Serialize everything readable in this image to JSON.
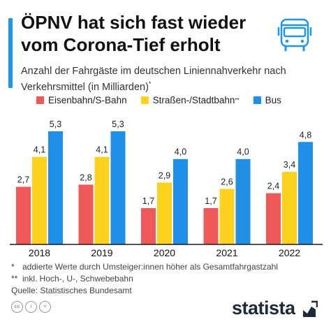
{
  "header": {
    "title": "ÖPNV hat sich fast wieder vom Corona-Tief erholt",
    "subtitle": "Anzahl der Fahrgäste im deutschen Liniennahverkehr nach Verkehrsmittel (in Milliarden)",
    "subtitle_mark": "*",
    "icon": "bus-icon"
  },
  "colors": {
    "accent": "#2196e8",
    "rail": "#f0595a",
    "tram": "#fcd21e",
    "bus": "#1f8fe8",
    "axis": "#1a1a1a"
  },
  "chart_data": {
    "type": "bar",
    "categories": [
      "2018",
      "2019",
      "2020",
      "2021",
      "2022"
    ],
    "series": [
      {
        "name": "Eisenbahn/S-Bahn",
        "values": [
          2.7,
          2.8,
          1.7,
          1.7,
          2.4
        ],
        "labels": [
          "2,7",
          "2,8",
          "1,7",
          "1,7",
          "2,4"
        ]
      },
      {
        "name": "Straßen-/Stadtbahn",
        "name_mark": "**",
        "values": [
          4.1,
          4.1,
          2.9,
          2.6,
          3.4
        ],
        "labels": [
          "4,1",
          "4,1",
          "2,9",
          "2,6",
          "3,4"
        ]
      },
      {
        "name": "Bus",
        "values": [
          5.3,
          5.3,
          4.0,
          4.0,
          4.8
        ],
        "labels": [
          "5,3",
          "5,3",
          "4,0",
          "4,0",
          "4,8"
        ]
      }
    ],
    "ylim": [
      0,
      5.3
    ],
    "grid": false,
    "legend_position": "top"
  },
  "footnotes": [
    {
      "symbol": "*",
      "text": "addierte Werte durch Umsteiger:innen höher als Gesamtfahrgastzahl"
    },
    {
      "symbol": "**",
      "text": "inkl. Hoch-, U-, Schwebebahn"
    }
  ],
  "source": "Quelle: Statistisches Bundesamt",
  "footer": {
    "brand": "statista",
    "license_icons": [
      "cc-icon",
      "by-icon",
      "nd-icon"
    ]
  }
}
